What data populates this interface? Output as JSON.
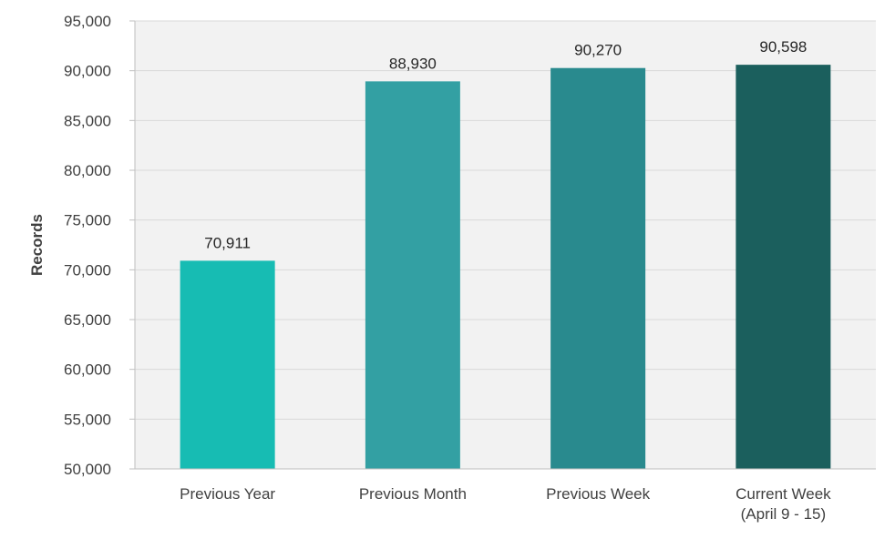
{
  "chart_data": {
    "type": "bar",
    "categories": [
      "Previous Year",
      "Previous Month",
      "Previous Week",
      "Current Week\n(April 9 - 15)"
    ],
    "values": [
      70911,
      88930,
      90270,
      90598
    ],
    "value_labels": [
      "70,911",
      "88,930",
      "90,270",
      "90,598"
    ],
    "bar_colors": [
      "#17BCB3",
      "#33A0A3",
      "#298A8E",
      "#1B5F5D"
    ],
    "ylabel": "Records",
    "xlabel": "",
    "ylim": [
      50000,
      95000
    ],
    "yticks": [
      "50,000",
      "55,000",
      "60,000",
      "65,000",
      "70,000",
      "75,000",
      "80,000",
      "85,000",
      "90,000",
      "95,000"
    ],
    "ytick_values": [
      50000,
      55000,
      60000,
      65000,
      70000,
      75000,
      80000,
      85000,
      90000,
      95000
    ],
    "grid": true,
    "plot_background": "#F2F2F2",
    "gridline_color": "#D9D9D9"
  }
}
